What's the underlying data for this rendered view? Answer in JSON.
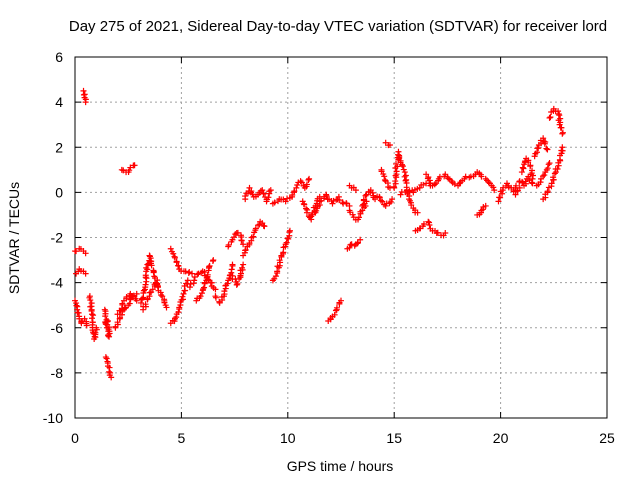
{
  "chart_data": {
    "type": "scatter",
    "title": "Day 275 of 2021, Sidereal Day-to-day VTEC variation (SDTVAR) for receiver lord",
    "xlabel": "GPS time / hours",
    "ylabel": "SDTVAR / TECUs",
    "xlim": [
      0,
      25
    ],
    "ylim": [
      -10,
      6
    ],
    "xticks": [
      0,
      5,
      10,
      15,
      20,
      25
    ],
    "yticks": [
      -10,
      -8,
      -6,
      -4,
      -2,
      0,
      2,
      4,
      6
    ],
    "grid": true,
    "marker": "+",
    "marker_color": "#ff0000",
    "series": [
      {
        "name": "SDTVAR",
        "segments": [
          [
            [
              0.0,
              -2.6
            ],
            [
              0.2,
              -2.5
            ],
            [
              0.4,
              -2.6
            ],
            [
              0.5,
              -2.7
            ]
          ],
          [
            [
              0.05,
              -3.6
            ],
            [
              0.2,
              -3.4
            ],
            [
              0.4,
              -3.5
            ],
            [
              0.5,
              -3.6
            ]
          ],
          [
            [
              0.0,
              -4.8
            ],
            [
              0.1,
              -5.2
            ],
            [
              0.2,
              -5.6
            ],
            [
              0.3,
              -5.8
            ],
            [
              0.45,
              -5.6
            ],
            [
              0.55,
              -5.9
            ]
          ],
          [
            [
              0.4,
              4.5
            ],
            [
              0.45,
              4.2
            ],
            [
              0.5,
              4.0
            ]
          ],
          [
            [
              0.7,
              -4.6
            ],
            [
              0.8,
              -5.4
            ],
            [
              0.85,
              -6.2
            ],
            [
              0.9,
              -6.5
            ],
            [
              1.0,
              -6.0
            ]
          ],
          [
            [
              1.4,
              -5.2
            ],
            [
              1.5,
              -6.0
            ],
            [
              1.6,
              -6.4
            ],
            [
              1.55,
              -5.7
            ]
          ],
          [
            [
              1.45,
              -7.3
            ],
            [
              1.55,
              -7.7
            ],
            [
              1.65,
              -8.0
            ],
            [
              1.7,
              -8.2
            ]
          ],
          [
            [
              1.9,
              -6.0
            ],
            [
              2.1,
              -5.6
            ],
            [
              2.3,
              -5.2
            ],
            [
              2.5,
              -5.0
            ],
            [
              2.7,
              -4.6
            ],
            [
              2.9,
              -4.5
            ]
          ],
          [
            [
              2.0,
              -5.4
            ],
            [
              2.3,
              -4.8
            ],
            [
              2.6,
              -4.5
            ],
            [
              2.9,
              -4.8
            ]
          ],
          [
            [
              2.2,
              1.0
            ],
            [
              2.4,
              0.9
            ],
            [
              2.6,
              1.1
            ],
            [
              2.8,
              1.2
            ]
          ],
          [
            [
              3.1,
              -4.9
            ],
            [
              3.3,
              -4.2
            ],
            [
              3.4,
              -3.2
            ],
            [
              3.5,
              -2.8
            ],
            [
              3.7,
              -3.5
            ],
            [
              3.9,
              -4.2
            ]
          ],
          [
            [
              3.2,
              -5.2
            ],
            [
              3.5,
              -4.6
            ],
            [
              3.8,
              -4.0
            ],
            [
              4.1,
              -4.6
            ],
            [
              4.3,
              -5.1
            ]
          ],
          [
            [
              4.5,
              -2.5
            ],
            [
              4.7,
              -2.9
            ],
            [
              4.9,
              -3.4
            ],
            [
              5.2,
              -3.5
            ],
            [
              5.5,
              -3.6
            ]
          ],
          [
            [
              4.5,
              -5.8
            ],
            [
              4.7,
              -5.6
            ],
            [
              4.9,
              -5.1
            ],
            [
              5.1,
              -4.5
            ],
            [
              5.3,
              -3.9
            ]
          ],
          [
            [
              5.4,
              -4.2
            ],
            [
              5.6,
              -3.9
            ],
            [
              5.8,
              -3.6
            ],
            [
              6.0,
              -3.5
            ],
            [
              6.3,
              -3.9
            ],
            [
              6.6,
              -4.3
            ]
          ],
          [
            [
              5.7,
              -4.8
            ],
            [
              5.9,
              -4.6
            ],
            [
              6.1,
              -4.0
            ],
            [
              6.3,
              -3.3
            ],
            [
              6.5,
              -3.0
            ]
          ],
          [
            [
              6.6,
              -4.6
            ],
            [
              6.8,
              -4.9
            ],
            [
              7.0,
              -4.6
            ],
            [
              7.2,
              -3.9
            ],
            [
              7.4,
              -3.2
            ]
          ],
          [
            [
              7.2,
              -2.4
            ],
            [
              7.4,
              -2.1
            ],
            [
              7.6,
              -1.8
            ],
            [
              7.8,
              -1.9
            ],
            [
              7.9,
              -2.3
            ]
          ],
          [
            [
              7.4,
              -3.7
            ],
            [
              7.6,
              -4.1
            ],
            [
              7.8,
              -3.6
            ],
            [
              7.9,
              -3.2
            ]
          ],
          [
            [
              7.9,
              -2.8
            ],
            [
              8.1,
              -2.4
            ],
            [
              8.3,
              -2.0
            ],
            [
              8.5,
              -1.6
            ],
            [
              8.7,
              -1.3
            ],
            [
              8.9,
              -1.5
            ]
          ],
          [
            [
              8.0,
              -0.3
            ],
            [
              8.2,
              0.2
            ],
            [
              8.4,
              -0.2
            ],
            [
              8.6,
              -0.1
            ],
            [
              8.8,
              0.1
            ],
            [
              9.0,
              -0.4
            ],
            [
              9.2,
              0.1
            ]
          ],
          [
            [
              9.3,
              -0.5
            ],
            [
              9.6,
              -0.3
            ],
            [
              9.9,
              -0.4
            ],
            [
              10.2,
              -0.2
            ],
            [
              10.4,
              0.2
            ],
            [
              10.6,
              0.5
            ],
            [
              10.8,
              0.2
            ],
            [
              11.0,
              0.6
            ]
          ],
          [
            [
              9.3,
              -3.9
            ],
            [
              9.5,
              -3.5
            ],
            [
              9.7,
              -2.8
            ],
            [
              9.9,
              -2.3
            ],
            [
              10.1,
              -1.7
            ]
          ],
          [
            [
              10.7,
              -0.4
            ],
            [
              10.9,
              -0.9
            ],
            [
              11.1,
              -1.2
            ],
            [
              11.3,
              -0.6
            ],
            [
              11.5,
              -0.2
            ]
          ],
          [
            [
              11.3,
              -0.9
            ],
            [
              11.5,
              -0.4
            ],
            [
              11.8,
              -0.1
            ],
            [
              12.1,
              -0.5
            ],
            [
              12.4,
              -0.2
            ],
            [
              12.6,
              -0.5
            ],
            [
              12.9,
              -0.6
            ]
          ],
          [
            [
              11.9,
              -5.7
            ],
            [
              12.1,
              -5.5
            ],
            [
              12.3,
              -5.2
            ],
            [
              12.5,
              -4.8
            ]
          ],
          [
            [
              12.8,
              -2.5
            ],
            [
              13.0,
              -2.3
            ],
            [
              13.2,
              -2.3
            ],
            [
              13.4,
              -2.1
            ]
          ],
          [
            [
              12.9,
              -0.8
            ],
            [
              13.1,
              -1.1
            ],
            [
              13.3,
              -1.2
            ],
            [
              13.5,
              -0.8
            ],
            [
              13.7,
              -0.4
            ]
          ],
          [
            [
              12.9,
              0.3
            ],
            [
              13.0,
              0.2
            ],
            [
              13.2,
              0.1
            ]
          ],
          [
            [
              13.5,
              -0.6
            ],
            [
              13.7,
              -0.1
            ],
            [
              13.9,
              0.1
            ],
            [
              14.1,
              -0.3
            ],
            [
              14.3,
              -0.2
            ],
            [
              14.6,
              -0.6
            ],
            [
              14.9,
              -0.3
            ]
          ],
          [
            [
              14.4,
              1.0
            ],
            [
              14.6,
              0.5
            ],
            [
              14.8,
              0.2
            ]
          ],
          [
            [
              14.6,
              2.2
            ],
            [
              14.8,
              2.1
            ]
          ],
          [
            [
              15.0,
              0.2
            ],
            [
              15.2,
              1.8
            ],
            [
              15.3,
              1.4
            ],
            [
              15.5,
              0.9
            ],
            [
              15.7,
              -0.3
            ],
            [
              15.9,
              -0.7
            ],
            [
              16.1,
              -0.9
            ]
          ],
          [
            [
              15.3,
              -0.1
            ],
            [
              15.6,
              0.1
            ],
            [
              15.9,
              0.0
            ],
            [
              16.2,
              0.2
            ],
            [
              16.5,
              0.4
            ],
            [
              16.7,
              0.3
            ]
          ],
          [
            [
              16.0,
              -1.7
            ],
            [
              16.2,
              -1.6
            ],
            [
              16.4,
              -1.4
            ]
          ],
          [
            [
              16.5,
              0.8
            ],
            [
              16.8,
              0.3
            ],
            [
              17.1,
              0.6
            ],
            [
              17.4,
              0.8
            ],
            [
              17.7,
              0.5
            ],
            [
              18.0,
              0.3
            ],
            [
              18.3,
              0.6
            ],
            [
              18.6,
              0.7
            ],
            [
              18.9,
              0.9
            ],
            [
              19.1,
              0.7
            ]
          ],
          [
            [
              16.6,
              -1.3
            ],
            [
              16.8,
              -1.7
            ],
            [
              17.0,
              -1.8
            ],
            [
              17.2,
              -1.9
            ],
            [
              17.4,
              -1.8
            ]
          ],
          [
            [
              18.9,
              -1.0
            ],
            [
              19.1,
              -0.8
            ],
            [
              19.3,
              -0.6
            ]
          ],
          [
            [
              19.3,
              0.6
            ],
            [
              19.5,
              0.4
            ],
            [
              19.7,
              0.1
            ]
          ],
          [
            [
              19.9,
              -0.4
            ],
            [
              20.1,
              0.1
            ],
            [
              20.3,
              0.4
            ],
            [
              20.5,
              0.2
            ],
            [
              20.7,
              -0.1
            ],
            [
              20.9,
              0.2
            ]
          ],
          [
            [
              20.7,
              0.2
            ],
            [
              20.9,
              0.5
            ],
            [
              21.1,
              0.3
            ],
            [
              21.3,
              0.7
            ],
            [
              21.5,
              0.4
            ]
          ],
          [
            [
              21.0,
              0.9
            ],
            [
              21.2,
              1.5
            ],
            [
              21.4,
              1.2
            ],
            [
              21.5,
              0.6
            ]
          ],
          [
            [
              21.6,
              1.6
            ],
            [
              21.8,
              2.1
            ],
            [
              22.0,
              2.4
            ],
            [
              22.2,
              1.9
            ]
          ],
          [
            [
              21.7,
              0.3
            ],
            [
              21.9,
              0.6
            ],
            [
              22.1,
              0.9
            ],
            [
              22.3,
              1.3
            ]
          ],
          [
            [
              22.0,
              -0.3
            ],
            [
              22.2,
              0.0
            ],
            [
              22.4,
              0.4
            ],
            [
              22.6,
              0.9
            ],
            [
              22.8,
              1.4
            ],
            [
              22.9,
              2.0
            ]
          ],
          [
            [
              22.3,
              3.3
            ],
            [
              22.5,
              3.7
            ],
            [
              22.7,
              3.6
            ],
            [
              22.8,
              3.1
            ],
            [
              22.9,
              2.6
            ]
          ]
        ]
      }
    ]
  }
}
